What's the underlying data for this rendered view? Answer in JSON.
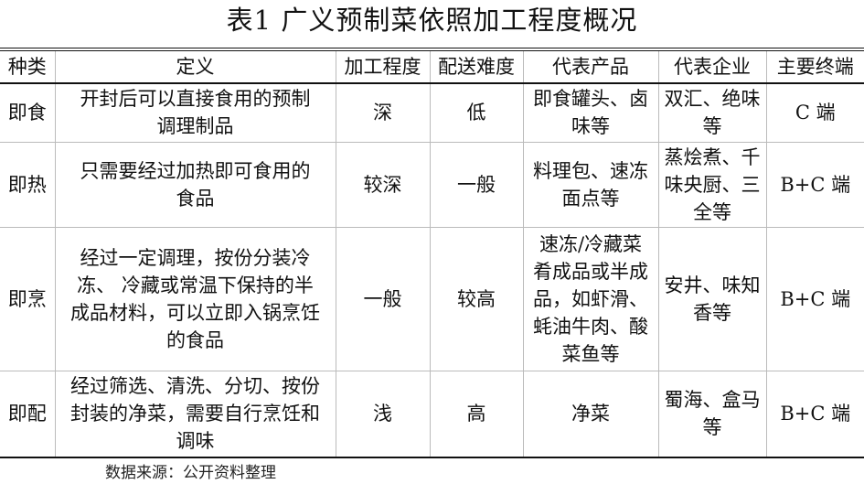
{
  "title": "表1 广义预制菜依照加工程度概况",
  "table": {
    "headers": [
      "种类",
      "定义",
      "加工程度",
      "配送难度",
      "代表产品",
      "代表企业",
      "主要终端"
    ],
    "rows": [
      [
        "即食",
        "开封后可以直接食用的预制\n调理制品",
        "深",
        "低",
        "即食罐头、卤\n味等",
        "双汇、绝味\n等",
        "C 端"
      ],
      [
        "即热",
        "只需要经过加热即可食用的\n食品",
        "较深",
        "一般",
        "料理包、速冻\n面点等",
        "蒸烩煮、千\n味央厨、三\n全等",
        "B+C 端"
      ],
      [
        "即烹",
        "经过一定调理，按份分装冷\n冻、 冷藏或常温下保持的半\n成品材料，可以立即入锅烹饪\n的食品",
        "一般",
        "较高",
        "速冻/冷藏菜\n肴成品或半成\n品，如虾滑、\n蚝油牛肉、酸\n菜鱼等",
        "安井、味知\n香等",
        "B+C 端"
      ],
      [
        "即配",
        "经过筛选、清洗、分切、按份\n封装的净菜，需要自行烹饪和\n调味",
        "浅",
        "高",
        "净菜",
        "蜀海、盒马\n等",
        "B+C 端"
      ]
    ]
  },
  "source": "数据来源：公开资料整理"
}
